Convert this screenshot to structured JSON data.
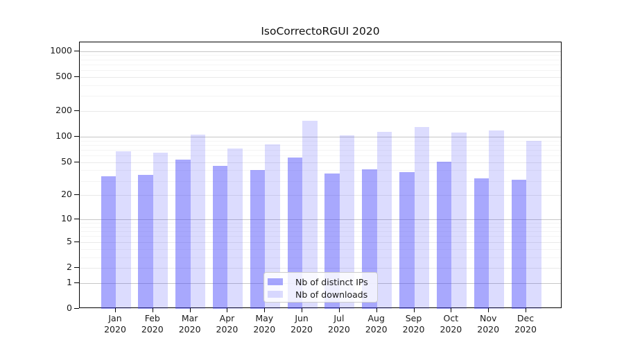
{
  "chart_data": {
    "type": "bar",
    "title": "IsoCorrectoRGUI 2020",
    "scale": "log1p",
    "categories": [
      "Jan",
      "Feb",
      "Mar",
      "Apr",
      "May",
      "Jun",
      "Jul",
      "Aug",
      "Sep",
      "Oct",
      "Nov",
      "Dec"
    ],
    "year_label": "2020",
    "series": [
      {
        "name": "Nb of distinct IPs",
        "color": "rgba(70,70,250,0.47)",
        "values": [
          34,
          35,
          54,
          45,
          40,
          57,
          37,
          41,
          38,
          51,
          32,
          31
        ]
      },
      {
        "name": "Nb of downloads",
        "color": "rgba(70,70,250,0.19)",
        "values": [
          67,
          65,
          106,
          73,
          82,
          155,
          104,
          115,
          130,
          113,
          118,
          90
        ]
      }
    ],
    "y_ticks": [
      0,
      1,
      2,
      5,
      10,
      20,
      50,
      100,
      200,
      500,
      1000
    ],
    "ylim": [
      0,
      1270
    ],
    "xlabel": "",
    "ylabel": "",
    "grid": true,
    "legend_position": "bottom-center"
  },
  "colors": {
    "axis": "#000000",
    "grid_major": "#c6c6c6",
    "grid_mid": "#e9e9e9",
    "grid_minor": "#f4f4f4",
    "text": "#1a1a1a",
    "background": "#ffffff"
  }
}
